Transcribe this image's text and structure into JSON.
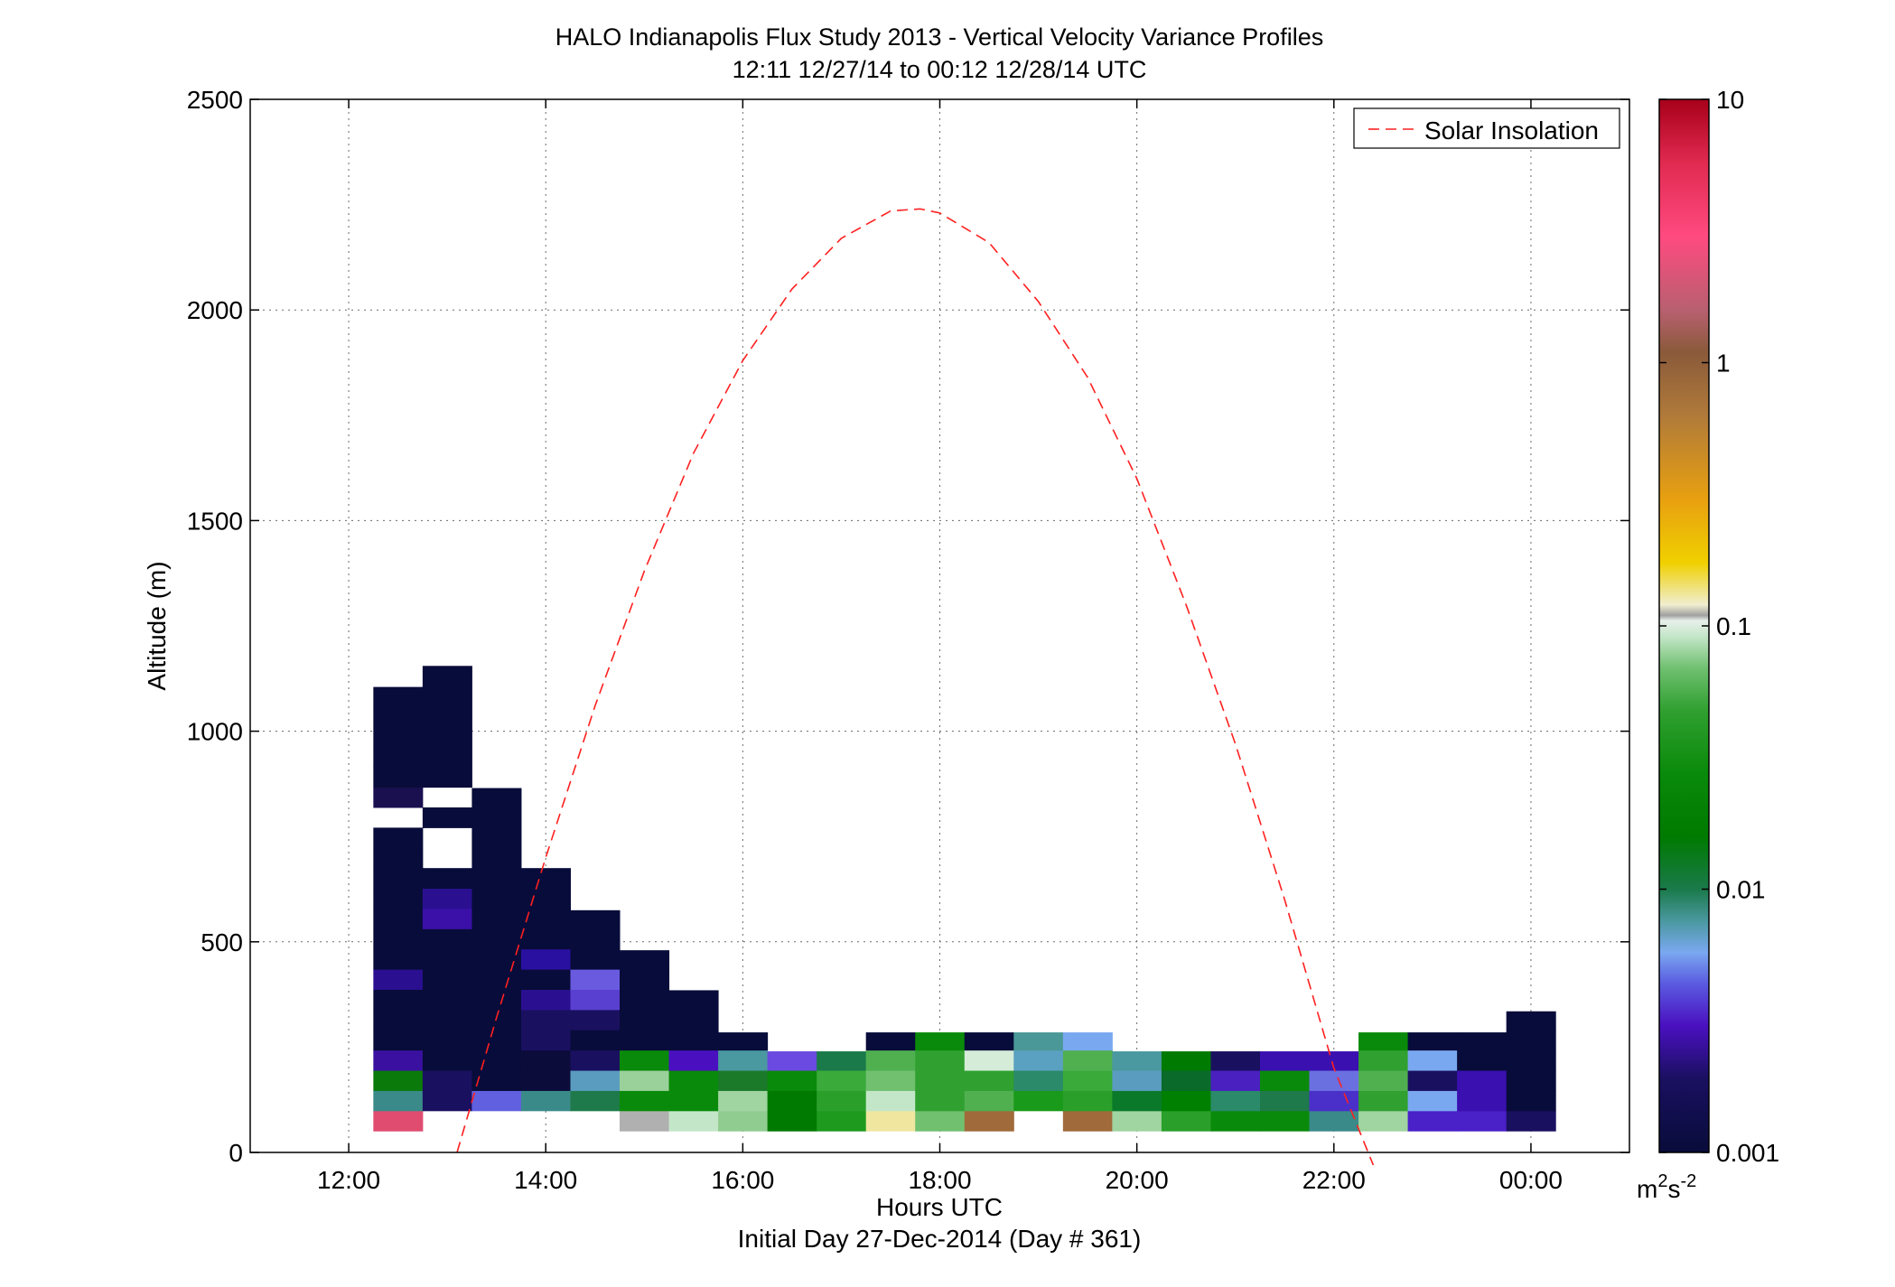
{
  "chart_data": {
    "type": "heatmap",
    "title": "HALO Indianapolis Flux Study 2013 - Vertical Velocity Variance Profiles",
    "subtitle": "12:11 12/27/14 to 00:12 12/28/14  UTC",
    "xlabel": "Hours UTC",
    "xlabel2": "Initial Day 27-Dec-2014 (Day # 361)",
    "ylabel": "Altitude (m)",
    "xlim": [
      11,
      25
    ],
    "ylim": [
      0,
      2500
    ],
    "x_ticks": [
      12,
      14,
      16,
      18,
      20,
      22,
      24
    ],
    "x_tick_labels": [
      "12:00",
      "14:00",
      "16:00",
      "18:00",
      "20:00",
      "22:00",
      "00:00"
    ],
    "y_ticks": [
      0,
      500,
      1000,
      1500,
      2000,
      2500
    ],
    "y_tick_labels": [
      "0",
      "500",
      "1000",
      "1500",
      "2000",
      "2500"
    ],
    "grid": true,
    "legend": {
      "placement": "top-right",
      "entries": [
        {
          "name": "Solar Insolation",
          "color": "#ff2020",
          "style": "dashed"
        }
      ]
    },
    "colorbar": {
      "scale": "log",
      "range": [
        0.001,
        10
      ],
      "ticks": [
        0.001,
        0.01,
        0.1,
        1,
        10
      ],
      "tick_labels": [
        "0.001",
        "0.01",
        "0.1",
        "1",
        "10"
      ],
      "unit_base": "m",
      "unit_sup1": "2",
      "unit_mid": "s",
      "unit_sup2": "-2"
    },
    "time_bin_hours": 0.5,
    "altitude_bin_m": 48,
    "columns": [
      {
        "t": 12.5,
        "top": 1105,
        "cells": [
          [
            75,
            "#e04c70"
          ],
          [
            123,
            "#3a8a8a"
          ],
          [
            171,
            "#0a7a0a"
          ],
          [
            219,
            "#3a10a0"
          ],
          [
            267,
            "#080c3a"
          ],
          [
            315,
            "#080c3a"
          ],
          [
            363,
            "#080c3a"
          ],
          [
            411,
            "#2a1090"
          ],
          [
            459,
            "#080c3a"
          ],
          [
            507,
            "#080c3a"
          ],
          [
            555,
            "#080c3a"
          ],
          [
            603,
            "#080c3a"
          ],
          [
            651,
            "#080c3a"
          ],
          [
            699,
            "#080c3a"
          ],
          [
            747,
            "#080c3a"
          ],
          [
            843,
            "#1a1050"
          ],
          [
            891,
            "#080c3a"
          ],
          [
            939,
            "#080c3a"
          ],
          [
            987,
            "#080c3a"
          ],
          [
            1035,
            "#080c3a"
          ],
          [
            1083,
            "#080c3a"
          ]
        ]
      },
      {
        "t": 13.0,
        "top": 1155,
        "cells": [
          [
            123,
            "#1a1060"
          ],
          [
            171,
            "#1a1060"
          ],
          [
            219,
            "#080c3a"
          ],
          [
            267,
            "#080c3a"
          ],
          [
            315,
            "#080c3a"
          ],
          [
            363,
            "#080c3a"
          ],
          [
            411,
            "#080c3a"
          ],
          [
            459,
            "#080c3a"
          ],
          [
            507,
            "#080c3a"
          ],
          [
            555,
            "#3a10a8"
          ],
          [
            603,
            "#2a1090"
          ],
          [
            651,
            "#080c3a"
          ],
          [
            795,
            "#080c3a"
          ],
          [
            891,
            "#080c3a"
          ],
          [
            939,
            "#080c3a"
          ],
          [
            987,
            "#080c3a"
          ],
          [
            1035,
            "#080c3a"
          ],
          [
            1083,
            "#080c3a"
          ],
          [
            1131,
            "#080c3a"
          ]
        ]
      },
      {
        "t": 13.5,
        "top": 865,
        "cells": [
          [
            123,
            "#6060e0"
          ],
          [
            171,
            "#080c3a"
          ],
          [
            219,
            "#080c3a"
          ],
          [
            267,
            "#080c3a"
          ],
          [
            315,
            "#080c3a"
          ],
          [
            363,
            "#080c3a"
          ],
          [
            411,
            "#080c3a"
          ],
          [
            459,
            "#080c3a"
          ],
          [
            507,
            "#080c3a"
          ],
          [
            555,
            "#080c3a"
          ],
          [
            603,
            "#080c3a"
          ],
          [
            651,
            "#080c3a"
          ],
          [
            699,
            "#080c3a"
          ],
          [
            747,
            "#080c3a"
          ],
          [
            795,
            "#080c3a"
          ],
          [
            843,
            "#080c3a"
          ]
        ]
      },
      {
        "t": 14.0,
        "top": 675,
        "cells": [
          [
            123,
            "#3a8a8a"
          ],
          [
            171,
            "#0c0c3a"
          ],
          [
            219,
            "#0c0c3a"
          ],
          [
            267,
            "#1a1060"
          ],
          [
            315,
            "#1a1060"
          ],
          [
            363,
            "#2a1090"
          ],
          [
            411,
            "#080c3a"
          ],
          [
            459,
            "#2a10a0"
          ],
          [
            507,
            "#080c3a"
          ],
          [
            555,
            "#080c3a"
          ],
          [
            603,
            "#080c3a"
          ],
          [
            651,
            "#080c3a"
          ]
        ]
      },
      {
        "t": 14.5,
        "top": 575,
        "cells": [
          [
            123,
            "#1e7a4a"
          ],
          [
            171,
            "#5a9cc0"
          ],
          [
            219,
            "#1a1060"
          ],
          [
            267,
            "#080c3a"
          ],
          [
            315,
            "#1a1060"
          ],
          [
            363,
            "#5a40d0"
          ],
          [
            411,
            "#6a5ae0"
          ],
          [
            459,
            "#080c3a"
          ],
          [
            507,
            "#080c3a"
          ],
          [
            555,
            "#080c3a"
          ]
        ]
      },
      {
        "t": 15.0,
        "top": 480,
        "cells": [
          [
            75,
            "#b0b0b0"
          ],
          [
            123,
            "#0a8a0a"
          ],
          [
            171,
            "#9ad09a"
          ],
          [
            219,
            "#0a8a0a"
          ],
          [
            267,
            "#080c3a"
          ],
          [
            315,
            "#080c3a"
          ],
          [
            363,
            "#080c3a"
          ],
          [
            411,
            "#080c3a"
          ],
          [
            459,
            "#080c3a"
          ]
        ]
      },
      {
        "t": 15.5,
        "top": 385,
        "cells": [
          [
            75,
            "#c4e6c8"
          ],
          [
            123,
            "#0a8a0a"
          ],
          [
            171,
            "#0a8a0a"
          ],
          [
            219,
            "#4a10c0"
          ],
          [
            267,
            "#080c3a"
          ],
          [
            315,
            "#080c3a"
          ],
          [
            363,
            "#080c3a"
          ]
        ]
      },
      {
        "t": 16.0,
        "top": 285,
        "cells": [
          [
            75,
            "#90cc90"
          ],
          [
            123,
            "#a0d4a0"
          ],
          [
            171,
            "#1a7a2a"
          ],
          [
            219,
            "#4a98a0"
          ],
          [
            267,
            "#080c3a"
          ]
        ]
      },
      {
        "t": 16.5,
        "top": 240,
        "cells": [
          [
            75,
            "#007a00"
          ],
          [
            123,
            "#007a00"
          ],
          [
            171,
            "#0a8a0a"
          ],
          [
            219,
            "#6a4ae0"
          ]
        ]
      },
      {
        "t": 17.0,
        "top": 240,
        "cells": [
          [
            75,
            "#1e9a1e"
          ],
          [
            123,
            "#2aa02a"
          ],
          [
            171,
            "#3aaa3a"
          ],
          [
            219,
            "#1a7a4a"
          ]
        ]
      },
      {
        "t": 17.5,
        "top": 285,
        "cells": [
          [
            75,
            "#f0e6a0"
          ],
          [
            123,
            "#c4e6c8"
          ],
          [
            171,
            "#70c070"
          ],
          [
            219,
            "#50b050"
          ],
          [
            267,
            "#080c3a"
          ]
        ]
      },
      {
        "t": 18.0,
        "top": 285,
        "cells": [
          [
            75,
            "#70c070"
          ],
          [
            123,
            "#30a030"
          ],
          [
            171,
            "#30a030"
          ],
          [
            219,
            "#30a030"
          ],
          [
            267,
            "#0a8a0a"
          ]
        ]
      },
      {
        "t": 18.5,
        "top": 285,
        "cells": [
          [
            75,
            "#a06a3a"
          ],
          [
            123,
            "#50b050"
          ],
          [
            171,
            "#30a030"
          ],
          [
            219,
            "#d4ecd8"
          ],
          [
            267,
            "#080c3a"
          ]
        ]
      },
      {
        "t": 19.0,
        "top": 285,
        "cells": [
          [
            123,
            "#1a9a1a"
          ],
          [
            171,
            "#2a8a6a"
          ],
          [
            219,
            "#5aa0c0"
          ],
          [
            267,
            "#4a9898"
          ]
        ]
      },
      {
        "t": 19.5,
        "top": 285,
        "cells": [
          [
            75,
            "#a06a3a"
          ],
          [
            123,
            "#2aa02a"
          ],
          [
            171,
            "#3aaa3a"
          ],
          [
            219,
            "#50b050"
          ],
          [
            267,
            "#7aa8f0"
          ]
        ]
      },
      {
        "t": 20.0,
        "top": 240,
        "cells": [
          [
            75,
            "#a0d4a0"
          ],
          [
            123,
            "#0a7a2a"
          ],
          [
            171,
            "#5a9cc0"
          ],
          [
            219,
            "#4a98a0"
          ]
        ]
      },
      {
        "t": 20.5,
        "top": 240,
        "cells": [
          [
            75,
            "#2aa02a"
          ],
          [
            123,
            "#008000"
          ],
          [
            171,
            "#0a6a2a"
          ],
          [
            219,
            "#007a00"
          ]
        ]
      },
      {
        "t": 21.0,
        "top": 240,
        "cells": [
          [
            75,
            "#0a8a0a"
          ],
          [
            123,
            "#2a8a6a"
          ],
          [
            171,
            "#4a20c0"
          ],
          [
            219,
            "#1a1060"
          ]
        ]
      },
      {
        "t": 21.5,
        "top": 240,
        "cells": [
          [
            75,
            "#0a8a0a"
          ],
          [
            123,
            "#1e7a4a"
          ],
          [
            171,
            "#0a8a0a"
          ],
          [
            219,
            "#3a10b0"
          ]
        ]
      },
      {
        "t": 22.0,
        "top": 240,
        "cells": [
          [
            75,
            "#3a8a8a"
          ],
          [
            123,
            "#4a30c8"
          ],
          [
            171,
            "#6a70e0"
          ],
          [
            219,
            "#3a10b0"
          ]
        ]
      },
      {
        "t": 22.5,
        "top": 285,
        "cells": [
          [
            75,
            "#a0d4a0"
          ],
          [
            123,
            "#30a030"
          ],
          [
            171,
            "#50b050"
          ],
          [
            219,
            "#30a030"
          ],
          [
            267,
            "#0a8a0a"
          ]
        ]
      },
      {
        "t": 23.0,
        "top": 285,
        "cells": [
          [
            75,
            "#4a20c8"
          ],
          [
            123,
            "#7aa8f0"
          ],
          [
            171,
            "#1a1060"
          ],
          [
            219,
            "#7aa8f0"
          ],
          [
            267,
            "#080c3a"
          ]
        ]
      },
      {
        "t": 23.5,
        "top": 285,
        "cells": [
          [
            75,
            "#4a20c8"
          ],
          [
            123,
            "#3a10b0"
          ],
          [
            171,
            "#3a10b0"
          ],
          [
            219,
            "#080c3a"
          ],
          [
            267,
            "#080c3a"
          ]
        ]
      },
      {
        "t": 24.0,
        "top": 335,
        "cells": [
          [
            75,
            "#1a1060"
          ],
          [
            123,
            "#080c3a"
          ],
          [
            171,
            "#080c3a"
          ],
          [
            219,
            "#080c3a"
          ],
          [
            267,
            "#080c3a"
          ],
          [
            315,
            "#080c3a"
          ]
        ]
      }
    ],
    "solar_insolation": {
      "name": "Solar Insolation",
      "x": [
        13.1,
        13.5,
        14.0,
        14.5,
        15.0,
        15.5,
        16.0,
        16.5,
        17.0,
        17.5,
        17.8,
        18.0,
        18.5,
        19.0,
        19.5,
        20.0,
        20.5,
        21.0,
        21.5,
        22.0,
        22.4
      ],
      "y": [
        0,
        320,
        700,
        1060,
        1380,
        1660,
        1880,
        2050,
        2170,
        2235,
        2240,
        2230,
        2160,
        2020,
        1840,
        1600,
        1300,
        970,
        600,
        200,
        -30
      ]
    }
  }
}
